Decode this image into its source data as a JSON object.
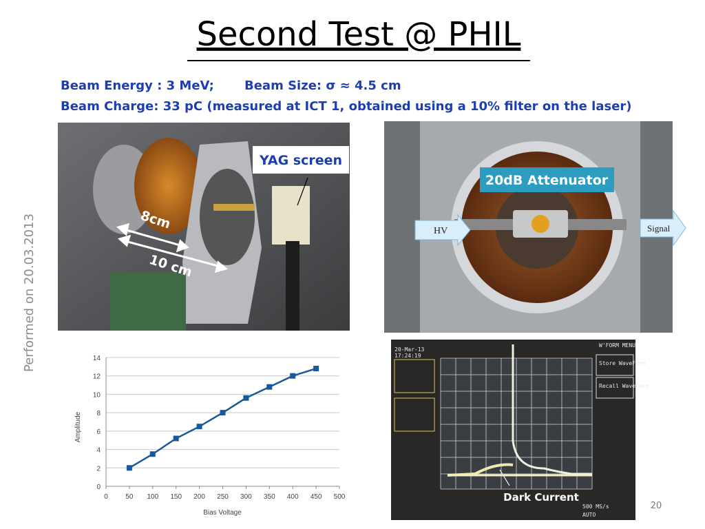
{
  "slide": {
    "title": "Second Test @ PHIL",
    "beam_energy": "Beam Energy : 3 MeV;",
    "beam_size": "Beam Size: σ ≈ 4.5 cm",
    "beam_charge": "Beam Charge: 33 pC (measured at ICT 1, obtained using a 10% filter on the laser)",
    "side_note": "Performed on 20.03.2013",
    "photo1": {
      "label": "YAG screen",
      "dim1": "8cm",
      "dim2": "10 cm"
    },
    "photo2": {
      "label": "20dB Attenuator",
      "left_arrow": "HV",
      "right_arrow": "Signal"
    },
    "scope": {
      "date": "20-Mar-13",
      "time": "17:24:19",
      "menu": "W'FORM MENU",
      "store": "Store WaveForm",
      "recall": "Recall WaveForm",
      "rate": "500 MS/s",
      "mode": "AUTO",
      "annotation": "Dark Current"
    },
    "page_number": "20"
  },
  "chart_data": {
    "type": "line",
    "x_label": "Bias Voltage",
    "y_label": "Amplitude",
    "x": [
      50,
      100,
      150,
      200,
      250,
      300,
      350,
      400,
      450
    ],
    "values": [
      2,
      3.5,
      5.2,
      6.5,
      8,
      9.6,
      10.8,
      12,
      12.8
    ],
    "color": "#17599a",
    "xlim": [
      0,
      500
    ],
    "xticks": [
      0,
      50,
      100,
      150,
      200,
      250,
      300,
      350,
      400,
      450,
      500
    ],
    "ylim": [
      0,
      14
    ],
    "yticks": [
      0,
      2,
      4,
      6,
      8,
      10,
      12,
      14
    ],
    "grid": true
  }
}
